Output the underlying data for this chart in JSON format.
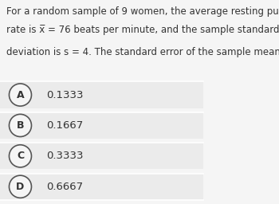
{
  "background_color": "#f5f5f5",
  "question_line1": "For a random sample of 9 women, the average resting pulse",
  "question_line2": "rate is x̅ = 76 beats per minute, and the sample standard",
  "question_line3": "deviation is s = 4. The standard error of the sample mean is",
  "options": [
    {
      "label": "A",
      "value": "0.1333"
    },
    {
      "label": "B",
      "value": "0.1667"
    },
    {
      "label": "C",
      "value": "0.3333"
    },
    {
      "label": "D",
      "value": "0.6667"
    }
  ],
  "option_bg_color": "#ebebeb",
  "text_color": "#333333",
  "circle_edge_color": "#555555",
  "circle_fill_color": "#f5f5f5",
  "question_fontsize": 8.5,
  "option_fontsize": 9.5,
  "label_fontsize": 9.0
}
